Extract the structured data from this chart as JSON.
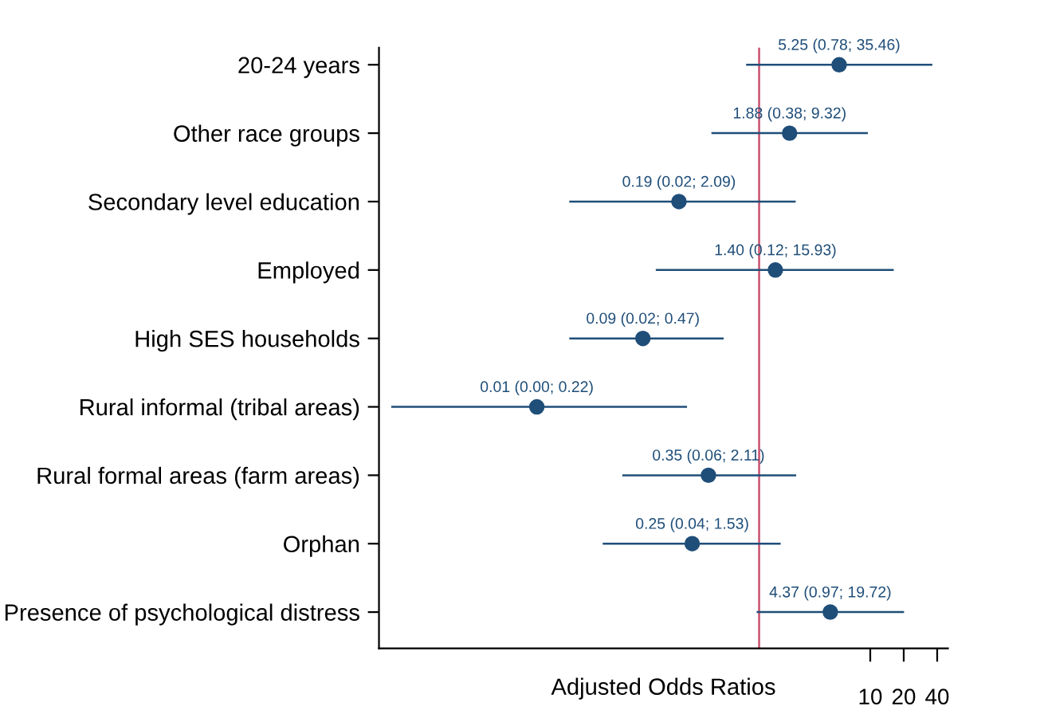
{
  "chart_data": {
    "type": "scatter",
    "orientation": "horizontal",
    "xlabel": "Adjusted Odds Ratios",
    "categories": [
      "20-24 years",
      "Other race groups",
      "Secondary level education",
      "Employed",
      "High SES households",
      "Rural informal (tribal areas)",
      "Rural formal areas (farm areas)",
      "Orphan",
      "Presence of psychological distress"
    ],
    "series": [
      {
        "color": "#1f4e79",
        "values": [
          5.25,
          1.88,
          0.19,
          1.4,
          0.09,
          0.01,
          0.35,
          0.25,
          4.37
        ],
        "errors": [
          [
            0.78,
            35.46
          ],
          [
            0.38,
            9.32
          ],
          [
            0.02,
            2.09
          ],
          [
            0.12,
            15.93
          ],
          [
            0.02,
            0.47
          ],
          [
            0.0005,
            0.22
          ],
          [
            0.06,
            2.11
          ],
          [
            0.04,
            1.53
          ],
          [
            0.97,
            19.72
          ]
        ],
        "value_labels": [
          "5.25 (0.78; 35.46)",
          "1.88 (0.38; 9.32)",
          "0.19 (0.02; 2.09)",
          "1.40 (0.12; 15.93)",
          "0.09 (0.02; 0.47)",
          "0.01 (0.00; 0.22)",
          "0.35 (0.06; 2.11)",
          "0.25 (0.04; 1.53)",
          "4.37 (0.97; 19.72)"
        ]
      }
    ],
    "log": "x",
    "xlim": [
      0.00038,
      50
    ],
    "xticks": [
      10,
      20,
      40
    ],
    "ref_lines": [
      {
        "axis": "x",
        "value": 1,
        "color": "#c8506e"
      }
    ],
    "marker": "circle",
    "grid": false
  }
}
